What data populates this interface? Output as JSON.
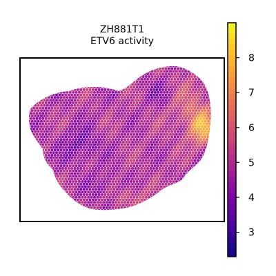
{
  "chart_data": {
    "type": "heatmap",
    "plot_kind": "spatial-spot-map",
    "title": "ZH881T1",
    "subtitle": "ETV6 activity",
    "colormap": "plasma",
    "colorbar": {
      "min": 2.3,
      "max": 9.0,
      "ticks": [
        3,
        4,
        5,
        6,
        7,
        8
      ],
      "tick_labels": [
        "3",
        "4",
        "5",
        "6",
        "7",
        "8"
      ],
      "placement": "right"
    },
    "axes_visible": false,
    "grid": false,
    "value_pattern": {
      "typical_range": [
        3.5,
        6.5
      ],
      "high_region": "right edge",
      "low_region": "center-left"
    }
  }
}
